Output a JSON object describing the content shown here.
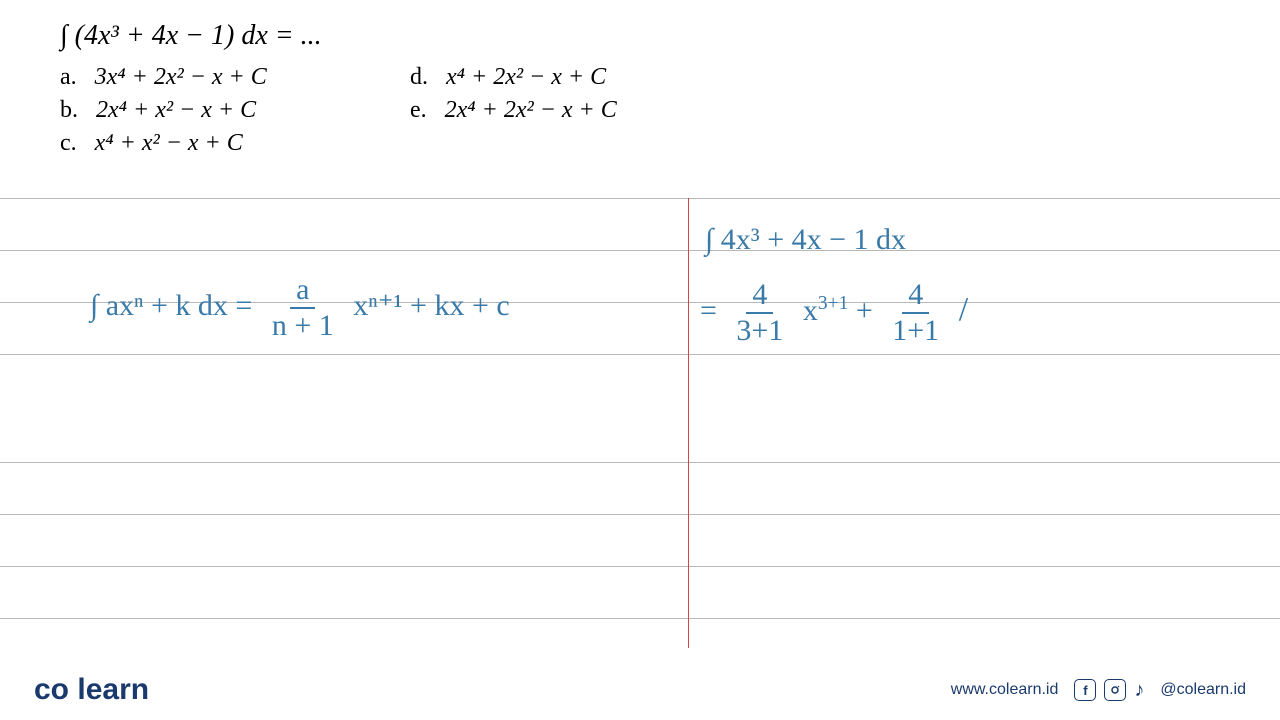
{
  "problem": {
    "question": "∫ (4x³ + 4x − 1) dx  =  ...",
    "options": {
      "a": "3x⁴ + 2x² − x + C",
      "b": "2x⁴ + x² − x + C",
      "c": "x⁴ + x² − x + C",
      "d": "x⁴ + 2x² − x + C",
      "e": "2x⁴ + 2x² − x + C"
    }
  },
  "ruled": {
    "line_color": "#b8b8b8",
    "line_positions": [
      0,
      52,
      104,
      156,
      264,
      316,
      368,
      420
    ],
    "red_margin_x": 688,
    "red_margin_color": "#d04545"
  },
  "handwriting": {
    "color": "#3a7aa8",
    "formula_left": {
      "integral": "∫ axⁿ + k  dx  =",
      "frac_num": "a",
      "frac_den": "n + 1",
      "after": "xⁿ⁺¹ + kx + c"
    },
    "work_right": {
      "line1": "∫ 4x³ + 4x − 1  dx",
      "eq": "=",
      "frac1_num": "4",
      "frac1_den": "3+1",
      "mid1": "x",
      "exp1": "3+1",
      "plus": "+",
      "frac2_num": "4",
      "frac2_den": "1+1",
      "slash": "/"
    }
  },
  "footer": {
    "logo_left": "co",
    "logo_right": "learn",
    "url": "www.colearn.id",
    "handle": "@colearn.id"
  },
  "colors": {
    "text": "#000000",
    "brand": "#1a3a6e",
    "brand_accent": "#2a8fd6",
    "pen": "#3a7aa8"
  }
}
